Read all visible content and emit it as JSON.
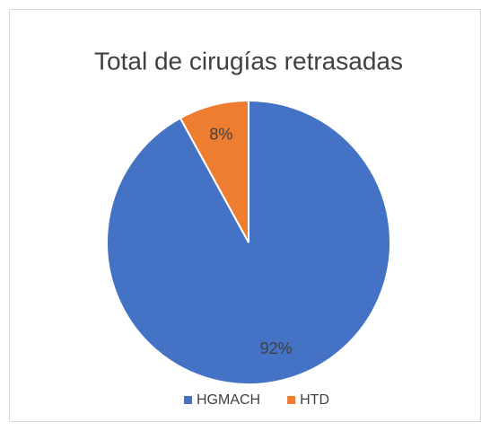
{
  "chart_data": {
    "type": "pie",
    "title": "Total de cirugías retrasadas",
    "categories": [
      "HGMACH",
      "HTD"
    ],
    "values": [
      92,
      8
    ],
    "value_labels": [
      "92%",
      "8%"
    ],
    "colors": [
      "#4472c4",
      "#ed7d31"
    ],
    "legend": "bottom"
  }
}
